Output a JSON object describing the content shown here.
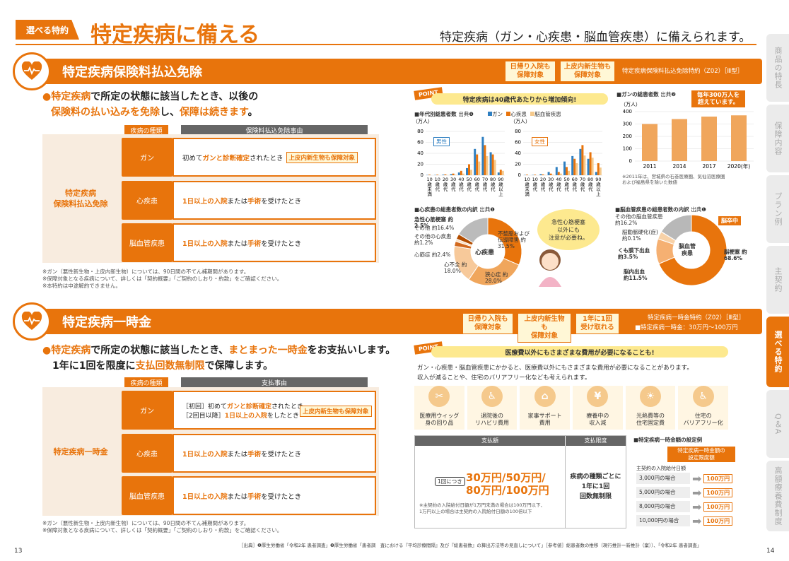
{
  "header": {
    "tag": "選べる特約",
    "title": "特定疾病に備える",
    "subtitle": "特定疾病（ガン・心疾患・脳血管疾患）に備えられます。"
  },
  "sec1": {
    "title": "特定疾病保険料払込免除",
    "badges": [
      "日帰り入院も\n保障対象",
      "上皮内新生物も\n保障対象"
    ],
    "rider": "特定疾病保険料払込免除特約（Z02）［Ⅲ型］",
    "lead1a": "●特定疾病",
    "lead1b": "で所定の状態に該当したとき、以後の",
    "lead2a": "保険料の払い込みを免除",
    "lead2b": "し、",
    "lead2c": "保障は続きます",
    "lead2d": "。",
    "th1": "疾病の種類",
    "th2": "保険料払込免除事由",
    "left": "特定疾病\n保険料払込免除",
    "rows": [
      {
        "d": "ガン",
        "t1": "初めて",
        "t2": "ガンと診断確定",
        "t3": "されたとき",
        "tag": "上皮内新生物も保障対象"
      },
      {
        "d": "心疾患",
        "t1": "",
        "t2": "1日以上の入院",
        "t3": "または",
        "t4": "手術",
        "t5": "を受けたとき"
      },
      {
        "d": "脳血管疾患",
        "t1": "",
        "t2": "1日以上の入院",
        "t3": "または",
        "t4": "手術",
        "t5": "を受けたとき"
      }
    ],
    "notes": [
      "※ガン（悪性新生物・上皮内新生物）については、90日間の不てん補期間があります。",
      "※保障対象となる疾病について、詳しくは「契約概要」「ご契約のしおり・約款」をご確認ください。",
      "※本特約は中途解約できません。"
    ]
  },
  "sec2": {
    "title": "特定疾病一時金",
    "badges": [
      "日帰り入院も\n保障対象",
      "上皮内新生物も\n保障対象",
      "1年に1回\n受け取れる"
    ],
    "rider": "特定疾病一時金特約（Z02）［Ⅲ型］",
    "rider2": "■特定疾病一時金：30万円〜100万円",
    "lead1a": "●特定疾病",
    "lead1b": "で所定の状態に該当したとき、",
    "lead1c": "まとまった一時金",
    "lead1d": "をお支払いします。",
    "lead2a": "1年に1回を限度に",
    "lead2b": "支払回数無制限",
    "lead2c": "で保障します。",
    "th1": "疾病の種類",
    "th2": "支払事由",
    "left": "特定疾病一時金",
    "gan1": "［初回］初めて",
    "gan1b": "ガンと診断確定",
    "gan1c": "されたとき",
    "gan2": "［2回目以降］",
    "gan2b": "1日以上の入院",
    "gan2c": "をしたとき",
    "gantag": "上皮内新生物も保障対象",
    "rows": [
      {
        "d": "ガン"
      },
      {
        "d": "心疾患",
        "t2": "1日以上の入院",
        "t3": "または",
        "t4": "手術",
        "t5": "を受けたとき"
      },
      {
        "d": "脳血管疾患",
        "t2": "1日以上の入院",
        "t3": "または",
        "t4": "手術",
        "t5": "を受けたとき"
      }
    ],
    "notes": [
      "※ガン（悪性新生物・上皮内新生物）については、90日間の不てん補期間があります。",
      "※保障対象となる疾病について、詳しくは「契約概要」「ご契約のしおり・約款」をご確認ください。"
    ]
  },
  "point1": {
    "label": "POINT",
    "title": "特定疾病は40歳代あたりから増加傾向!",
    "age_title": "■年代別総患者数",
    "src1": "出典❶",
    "legend": [
      "ガン",
      "心疾患",
      "脳血管疾患"
    ],
    "unit": "（万人）",
    "male": "男性",
    "female": "女性",
    "ages": [
      "10歳未満",
      "10歳代",
      "20歳代",
      "30歳代",
      "40歳代",
      "50歳代",
      "60歳代",
      "70歳代",
      "80歳代",
      "90歳以上"
    ],
    "total_title": "■ガンの総患者数",
    "src2": "出典❷",
    "callout": "毎年300万人を\n超えています。",
    "total_note": "※2011年は、宮城県の石巻医療圏、気仙沼医療圏\nおよび福島県を除いた数値",
    "heart_title": "■心疾患の総患者数の内訳",
    "src3": "出典❶",
    "heart_center": "心疾患",
    "stroke_title": "■脳血管疾患の総患者数の内訳",
    "src4": "出典❶",
    "stroke_center": "脳血管\n疾患",
    "bubble": "急性心筋梗塞\n以外にも\n注意が必要ね。"
  },
  "heart_labels": {
    "a": "急性心筋梗塞 約2.5%",
    "b": "その他 約16.4%",
    "c": "その他の心疾患 約1.2%",
    "d": "心筋症 約2.4%",
    "e": "心不全 約18.0%",
    "f": "狭心症 約28.0%",
    "g": "不整脈および伝導障害 約31.5%"
  },
  "stroke_labels": {
    "a": "その他の脳血管疾患 約16.2%",
    "b": "脳動脈硬化(症) 約0.1%",
    "c": "くも膜下出血 約3.5%",
    "d": "脳内出血 約11.5%",
    "e": "脳梗塞 約68.6%",
    "f": "脳卒中"
  },
  "chart_data": [
    {
      "type": "bar",
      "title": "年代別総患者数 男性",
      "categories": [
        "10歳未満",
        "10歳代",
        "20歳代",
        "30歳代",
        "40歳代",
        "50歳代",
        "60歳代",
        "70歳代",
        "80歳代",
        "90歳以上"
      ],
      "ylabel": "（万人）",
      "ylim": [
        0,
        80
      ],
      "series": [
        {
          "name": "ガン",
          "values": [
            0.5,
            0.5,
            1,
            2,
            5,
            13,
            48,
            70,
            42,
            5
          ]
        },
        {
          "name": "心疾患",
          "values": [
            1,
            1,
            1.5,
            3,
            8,
            20,
            38,
            55,
            38,
            10
          ]
        },
        {
          "name": "脳血管疾患",
          "values": [
            0,
            0,
            0.5,
            1,
            3,
            10,
            25,
            35,
            28,
            8
          ]
        }
      ]
    },
    {
      "type": "bar",
      "title": "年代別総患者数 女性",
      "categories": [
        "10歳未満",
        "10歳代",
        "20歳代",
        "30歳代",
        "40歳代",
        "50歳代",
        "60歳代",
        "70歳代",
        "80歳代",
        "90歳以上"
      ],
      "ylabel": "（万人）",
      "ylim": [
        0,
        80
      ],
      "series": [
        {
          "name": "ガン",
          "values": [
            0.5,
            0.5,
            2,
            6,
            15,
            25,
            35,
            48,
            30,
            6
          ]
        },
        {
          "name": "心疾患",
          "values": [
            1,
            1,
            1.5,
            3,
            6,
            15,
            30,
            55,
            42,
            22
          ]
        },
        {
          "name": "脳血管疾患",
          "values": [
            0,
            0,
            0.5,
            1,
            3,
            8,
            22,
            36,
            32,
            14
          ]
        }
      ]
    },
    {
      "type": "bar",
      "title": "ガンの総患者数",
      "categories": [
        "2011",
        "2014",
        "2017",
        "2020(年)"
      ],
      "values": [
        300,
        340,
        360,
        370
      ],
      "ylabel": "（万人）",
      "ylim": [
        0,
        400
      ]
    },
    {
      "type": "pie",
      "title": "心疾患の総患者数の内訳",
      "labels": [
        "不整脈および伝導障害",
        "狭心症",
        "心不全",
        "心筋症",
        "その他の心疾患",
        "急性心筋梗塞",
        "その他"
      ],
      "values": [
        31.5,
        28.0,
        18.0,
        2.4,
        1.2,
        2.5,
        16.4
      ]
    },
    {
      "type": "pie",
      "title": "脳血管疾患の総患者数の内訳",
      "labels": [
        "脳梗塞",
        "脳内出血",
        "くも膜下出血",
        "脳動脈硬化(症)",
        "その他の脳血管疾患"
      ],
      "values": [
        68.6,
        11.5,
        3.5,
        0.1,
        16.2
      ]
    }
  ],
  "point2": {
    "label": "POINT",
    "title": "医療費以外にもさまざまな費用が必要になることも!",
    "desc1": "ガン・心疾患・脳血管疾患にかかると、医療費以外にもさまざまな費用が必要になることがあります。",
    "desc2": "収入が減ることや、住宅のバリアフリー化なども考えられます。",
    "costs": [
      "医療用ウィッグ\n身の回り品",
      "退院後の\nリハビリ費用",
      "家事サポート\n費用",
      "療養中の\n収入減",
      "光熱費等の\n住宅固定費",
      "住宅の\nバリアフリー化"
    ],
    "th_amount": "支払額",
    "th_limit": "支払限度",
    "per": "1回につき",
    "amt1": "30万円/50万円/",
    "amt2": "80万円/100万円",
    "amt_note": "※主契約の入院給付日額が1万円未満の場合は100万円以下、\n1万円以上の場合は主契約の入院給付日額の100倍以下",
    "limit": "疾病の種類ごとに\n1年に1回\n回数無制限",
    "ex_title": "■特定疾病一時金額の設定例",
    "ex_head": "特定疾病一時金額の\n設定限度額",
    "ex_sub": "主契約の入院給付日額",
    "examples": [
      {
        "day": "3,000円の場合",
        "amt": "100万円"
      },
      {
        "day": "5,000円の場合",
        "amt": "100万円"
      },
      {
        "day": "8,000円の場合",
        "amt": "100万円"
      },
      {
        "day": "10,000円の場合",
        "amt": "100万円"
      }
    ]
  },
  "tabs": [
    "商品の特長",
    "保障内容",
    "プラン例",
    "主契約",
    "選べる特約",
    "Q＆A",
    "高額療養費制度"
  ],
  "footer": {
    "left": "13",
    "right": "14",
    "source": "［出典］❶厚生労働省「令和2年 患者調査」❷厚生労働省「患者調　査における『平均診療間隔』及び『総患者数』の算出方法等の見直しについて」［参考値］総患者数の推移（現行推計ー新推計（案））、「令和2年 患者調査」"
  }
}
